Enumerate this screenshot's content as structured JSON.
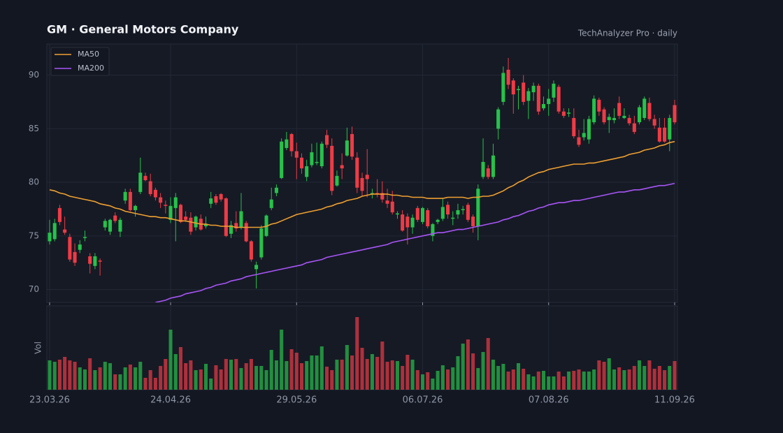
{
  "chart_data": {
    "type": "candlestick",
    "title": "GM  ·  General Motors Company",
    "subtitle": "TechAnalyzer Pro · daily",
    "volume_label": "Vol",
    "categories": [
      "23.03.26",
      null,
      null,
      null,
      null,
      null,
      null,
      null,
      null,
      null,
      null,
      null,
      null,
      null,
      null,
      null,
      null,
      null,
      null,
      null,
      null,
      null,
      null,
      null,
      "24.04.26",
      null,
      null,
      null,
      null,
      null,
      null,
      null,
      null,
      null,
      null,
      null,
      null,
      null,
      null,
      null,
      null,
      null,
      null,
      null,
      null,
      null,
      null,
      null,
      null,
      "29.05.26",
      null,
      null,
      null,
      null,
      null,
      null,
      null,
      null,
      null,
      null,
      null,
      null,
      null,
      null,
      null,
      null,
      null,
      null,
      null,
      null,
      null,
      null,
      null,
      null,
      "06.07.26",
      null,
      null,
      null,
      null,
      null,
      null,
      null,
      null,
      null,
      null,
      null,
      null,
      null,
      null,
      null,
      null,
      null,
      null,
      null,
      null,
      null,
      null,
      null,
      null,
      "07.08.26",
      null,
      null,
      null,
      null,
      null,
      null,
      null,
      null,
      null,
      null,
      null,
      null,
      null,
      null,
      null,
      null,
      null,
      null,
      null,
      null,
      null,
      null,
      null,
      null,
      "11.09.26"
    ],
    "open": [
      74.5,
      74.7,
      77.6,
      75.6,
      74.9,
      73.5,
      73.7,
      74.8,
      73.1,
      72.2,
      72.7,
      75.8,
      75.4,
      76.9,
      75.4,
      78.3,
      79.1,
      77.4,
      79.1,
      80.6,
      80.1,
      79.3,
      78.6,
      77.9,
      76.5,
      77.6,
      77.9,
      76.8,
      76.7,
      75.8,
      76.6,
      75.9,
      78.0,
      78.7,
      78.9,
      78.5,
      75.2,
      76.2,
      75.8,
      76.2,
      74.5,
      71.9,
      73.0,
      75.0,
      77.6,
      79.0,
      80.4,
      83.2,
      84.5,
      82.9,
      82.3,
      80.5,
      81.6,
      81.8,
      81.5,
      84.4,
      83.4,
      79.7,
      81.6,
      82.5,
      84.5,
      82.3,
      80.4,
      80.7,
      78.9,
      79.0,
      79.0,
      78.3,
      78.2,
      77.0,
      77.0,
      76.8,
      75.8,
      77.6,
      76.3,
      77.4,
      75.0,
      76.3,
      76.6,
      77.9,
      76.6,
      77.0,
      77.4,
      77.9,
      76.8,
      75.9,
      80.5,
      81.3,
      80.5,
      85.0,
      87.5,
      90.5,
      89.5,
      88.6,
      89.3,
      87.6,
      88.4,
      89.0,
      86.9,
      87.3,
      87.9,
      88.9,
      86.6,
      86.4,
      86.0,
      84.2,
      84.2,
      84.0,
      85.6,
      87.7,
      86.8,
      85.8,
      85.8,
      87.4,
      86.0,
      86.0,
      85.5,
      85.6,
      86.0,
      87.4,
      85.9,
      85.1,
      85.1,
      84.0,
      87.2
    ],
    "high": [
      76.5,
      76.6,
      77.9,
      76.8,
      75.2,
      74.3,
      74.6,
      75.5,
      73.4,
      73.4,
      72.9,
      76.6,
      76.6,
      77.2,
      76.7,
      79.4,
      79.4,
      77.9,
      82.3,
      80.9,
      80.8,
      79.5,
      79.0,
      78.3,
      78.6,
      79.0,
      78.0,
      77.3,
      77.2,
      76.9,
      77.0,
      76.8,
      79.1,
      78.9,
      79.0,
      78.6,
      76.4,
      77.3,
      79.0,
      76.4,
      74.6,
      72.6,
      76.0,
      77.0,
      79.5,
      79.8,
      84.1,
      84.7,
      84.6,
      83.7,
      82.7,
      82.1,
      83.6,
      83.7,
      83.8,
      84.9,
      84.1,
      81.1,
      82.7,
      85.1,
      85.2,
      82.8,
      80.9,
      83.1,
      79.4,
      80.3,
      80.1,
      79.4,
      79.2,
      77.3,
      77.4,
      77.1,
      77.0,
      77.8,
      77.7,
      77.6,
      76.2,
      76.6,
      78.5,
      78.2,
      77.3,
      78.0,
      77.8,
      78.1,
      77.0,
      79.8,
      84.1,
      81.6,
      83.6,
      87.0,
      90.8,
      91.6,
      89.7,
      89.0,
      90.0,
      88.8,
      89.3,
      89.2,
      88.0,
      88.7,
      89.5,
      89.1,
      86.9,
      86.9,
      86.9,
      84.9,
      85.9,
      86.2,
      88.1,
      87.9,
      87.0,
      86.4,
      86.9,
      88.0,
      86.9,
      86.3,
      86.2,
      87.2,
      88.0,
      87.9,
      86.3,
      86.0,
      86.0,
      86.3,
      87.7
    ],
    "low": [
      74.2,
      74.5,
      76.0,
      75.1,
      72.6,
      72.2,
      73.4,
      74.5,
      71.5,
      71.9,
      71.3,
      75.5,
      75.1,
      76.2,
      74.9,
      78.0,
      77.3,
      76.8,
      78.9,
      80.1,
      78.7,
      78.3,
      77.6,
      77.1,
      76.2,
      74.5,
      76.2,
      76.3,
      75.1,
      75.5,
      75.5,
      75.7,
      77.6,
      77.9,
      78.2,
      74.9,
      74.8,
      75.4,
      75.6,
      74.4,
      72.6,
      70.1,
      72.8,
      74.9,
      77.4,
      78.7,
      80.3,
      83.0,
      82.4,
      80.3,
      80.8,
      80.1,
      81.4,
      81.6,
      81.3,
      83.2,
      78.8,
      79.6,
      80.3,
      82.4,
      82.1,
      79.0,
      78.7,
      78.6,
      78.5,
      78.6,
      78.1,
      77.6,
      77.0,
      76.6,
      75.4,
      74.2,
      75.2,
      76.3,
      76.1,
      75.7,
      74.5,
      76.1,
      76.4,
      76.6,
      76.0,
      76.6,
      77.0,
      76.3,
      75.3,
      74.6,
      80.3,
      80.3,
      80.3,
      84.0,
      87.2,
      88.7,
      86.4,
      86.8,
      87.2,
      85.9,
      87.6,
      86.3,
      86.7,
      86.2,
      87.5,
      86.4,
      86.0,
      86.1,
      84.1,
      83.3,
      83.9,
      83.6,
      85.4,
      86.2,
      85.4,
      84.6,
      85.5,
      85.9,
      85.9,
      85.3,
      84.5,
      85.4,
      85.8,
      85.7,
      85.0,
      83.7,
      83.7,
      82.9,
      85.4
    ],
    "close": [
      75.3,
      76.2,
      76.3,
      75.3,
      72.8,
      72.5,
      74.2,
      74.9,
      72.4,
      73.1,
      72.6,
      76.4,
      76.5,
      76.4,
      76.5,
      79.1,
      77.4,
      77.8,
      80.9,
      80.2,
      78.9,
      78.6,
      78.1,
      77.8,
      77.8,
      78.6,
      76.3,
      76.5,
      75.4,
      76.8,
      75.6,
      76.1,
      78.5,
      78.1,
      78.4,
      75.0,
      76.0,
      75.7,
      77.3,
      74.5,
      72.8,
      72.3,
      75.7,
      76.9,
      78.4,
      79.5,
      83.8,
      84.0,
      82.9,
      82.3,
      81.3,
      81.5,
      82.8,
      81.9,
      83.6,
      83.5,
      79.2,
      80.6,
      81.3,
      83.9,
      82.4,
      79.5,
      79.2,
      80.3,
      79.0,
      78.9,
      78.4,
      78.0,
      77.2,
      77.1,
      75.5,
      75.8,
      76.7,
      76.5,
      77.6,
      75.9,
      76.1,
      76.5,
      77.7,
      77.0,
      76.7,
      77.4,
      77.5,
      76.5,
      75.9,
      79.4,
      81.9,
      80.5,
      82.5,
      86.8,
      90.2,
      89.1,
      88.2,
      88.7,
      87.5,
      88.5,
      89.0,
      86.6,
      87.3,
      87.8,
      89.2,
      86.6,
      86.2,
      86.5,
      84.3,
      83.5,
      84.6,
      85.9,
      87.8,
      86.6,
      85.6,
      86.1,
      86.0,
      86.2,
      86.2,
      85.5,
      84.7,
      87.0,
      87.8,
      85.9,
      85.3,
      83.8,
      83.8,
      86.0,
      85.6
    ],
    "volume": [
      42,
      40,
      43,
      47,
      42,
      40,
      32,
      29,
      45,
      28,
      32,
      40,
      38,
      22,
      22,
      32,
      36,
      32,
      40,
      17,
      28,
      17,
      34,
      44,
      86,
      51,
      61,
      38,
      42,
      28,
      29,
      37,
      16,
      35,
      29,
      44,
      43,
      44,
      31,
      38,
      44,
      34,
      34,
      28,
      57,
      42,
      86,
      41,
      58,
      53,
      38,
      41,
      49,
      49,
      62,
      33,
      28,
      43,
      43,
      64,
      49,
      104,
      60,
      44,
      51,
      47,
      69,
      40,
      42,
      41,
      34,
      50,
      43,
      28,
      22,
      25,
      16,
      27,
      35,
      29,
      32,
      48,
      66,
      72,
      52,
      31,
      54,
      74,
      43,
      34,
      37,
      26,
      29,
      38,
      30,
      22,
      19,
      26,
      27,
      19,
      19,
      26,
      19,
      26,
      27,
      29,
      26,
      26,
      29,
      42,
      40,
      45,
      29,
      32,
      28,
      29,
      34,
      42,
      34,
      42,
      30,
      34,
      28,
      34,
      41
    ],
    "volume_lim": [
      0,
      120
    ],
    "series": [
      {
        "name": "MA50",
        "color": "#f0a030",
        "values": [
          79.3,
          79.2,
          79.0,
          78.9,
          78.7,
          78.6,
          78.5,
          78.4,
          78.3,
          78.2,
          78.0,
          77.9,
          77.8,
          77.6,
          77.5,
          77.3,
          77.2,
          77.1,
          77.0,
          76.9,
          76.8,
          76.8,
          76.7,
          76.7,
          76.6,
          76.5,
          76.4,
          76.4,
          76.3,
          76.2,
          76.1,
          76.1,
          76.0,
          76.0,
          75.9,
          75.9,
          75.9,
          75.8,
          75.8,
          75.8,
          75.8,
          75.8,
          75.8,
          75.9,
          76.1,
          76.2,
          76.4,
          76.6,
          76.8,
          77.0,
          77.1,
          77.2,
          77.3,
          77.4,
          77.5,
          77.7,
          77.8,
          78.0,
          78.1,
          78.3,
          78.4,
          78.5,
          78.7,
          78.8,
          78.9,
          78.9,
          78.9,
          78.9,
          78.8,
          78.8,
          78.7,
          78.7,
          78.6,
          78.6,
          78.6,
          78.5,
          78.5,
          78.5,
          78.5,
          78.6,
          78.6,
          78.6,
          78.6,
          78.5,
          78.6,
          78.6,
          78.7,
          78.7,
          78.8,
          79.0,
          79.2,
          79.5,
          79.7,
          80.0,
          80.2,
          80.5,
          80.7,
          80.9,
          81.0,
          81.2,
          81.3,
          81.4,
          81.5,
          81.6,
          81.7,
          81.7,
          81.7,
          81.8,
          81.8,
          81.9,
          82.0,
          82.1,
          82.2,
          82.3,
          82.4,
          82.6,
          82.7,
          82.8,
          83.0,
          83.1,
          83.2,
          83.4,
          83.5,
          83.7,
          83.8
        ]
      },
      {
        "name": "MA200",
        "color": "#a855f7",
        "values": [
          null,
          null,
          null,
          null,
          null,
          null,
          null,
          null,
          null,
          null,
          null,
          null,
          null,
          null,
          null,
          null,
          null,
          null,
          null,
          null,
          null,
          68.8,
          68.9,
          69.0,
          69.2,
          69.3,
          69.4,
          69.6,
          69.7,
          69.8,
          69.9,
          70.1,
          70.2,
          70.4,
          70.5,
          70.6,
          70.8,
          70.9,
          71.0,
          71.2,
          71.3,
          71.4,
          71.5,
          71.6,
          71.7,
          71.8,
          71.9,
          72.0,
          72.1,
          72.2,
          72.3,
          72.5,
          72.6,
          72.7,
          72.8,
          73.0,
          73.1,
          73.2,
          73.3,
          73.4,
          73.5,
          73.6,
          73.7,
          73.8,
          73.9,
          74.0,
          74.1,
          74.2,
          74.4,
          74.5,
          74.6,
          74.7,
          74.8,
          74.9,
          75.0,
          75.1,
          75.2,
          75.3,
          75.3,
          75.4,
          75.5,
          75.6,
          75.6,
          75.7,
          75.8,
          75.9,
          76.0,
          76.1,
          76.2,
          76.3,
          76.5,
          76.6,
          76.8,
          76.9,
          77.1,
          77.3,
          77.4,
          77.6,
          77.7,
          77.9,
          78.0,
          78.1,
          78.1,
          78.2,
          78.3,
          78.3,
          78.4,
          78.5,
          78.6,
          78.7,
          78.8,
          78.9,
          79.0,
          79.1,
          79.1,
          79.2,
          79.3,
          79.3,
          79.4,
          79.5,
          79.6,
          79.7,
          79.7,
          79.8,
          79.9
        ]
      }
    ],
    "up_color": "#26c24a",
    "down_color": "#ef3b45",
    "ylim": [
      68.8,
      92.9
    ],
    "yticks": [
      70,
      75,
      80,
      85,
      90
    ],
    "grid": true,
    "legend": "upper left"
  }
}
